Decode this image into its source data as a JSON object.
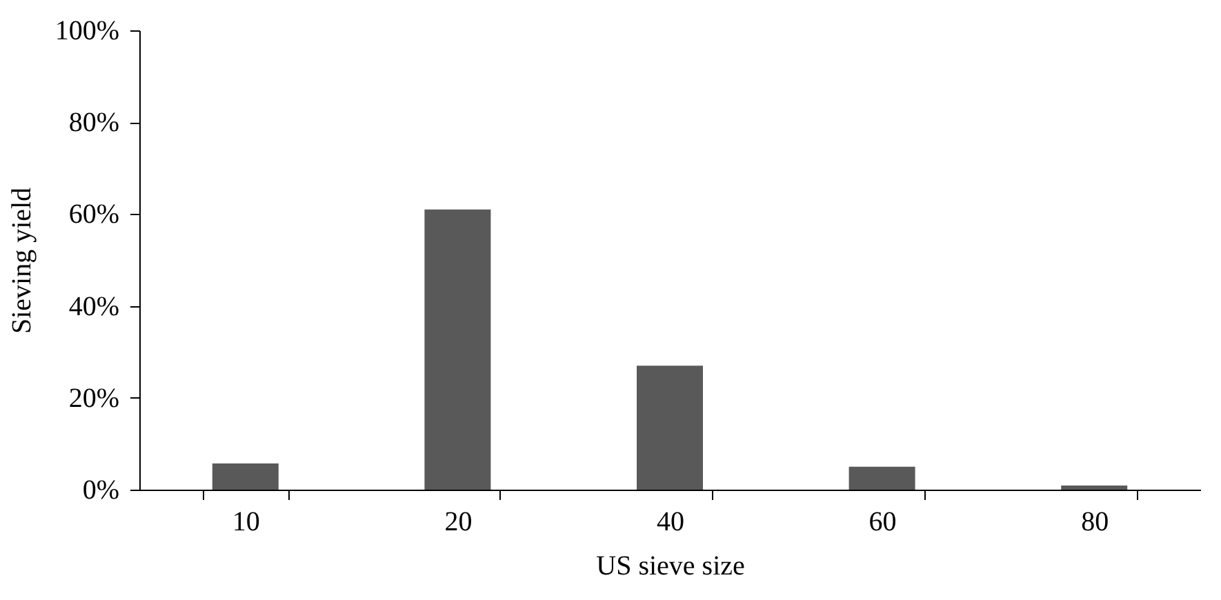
{
  "chart_data": {
    "type": "bar",
    "xlabel": "US sieve size",
    "ylabel": "Sieving yield",
    "categories": [
      "10",
      "20",
      "40",
      "60",
      "80"
    ],
    "values": [
      5.7,
      61,
      27,
      5,
      0.9
    ],
    "color": "#595959",
    "ylim": [
      0,
      100
    ],
    "yticks": [
      {
        "value": 0,
        "label": "0%"
      },
      {
        "value": 20,
        "label": "20%"
      },
      {
        "value": 40,
        "label": "40%"
      },
      {
        "value": 60,
        "label": "60%"
      },
      {
        "value": 80,
        "label": "80%"
      },
      {
        "value": 100,
        "label": "100%"
      }
    ],
    "grid": false
  }
}
